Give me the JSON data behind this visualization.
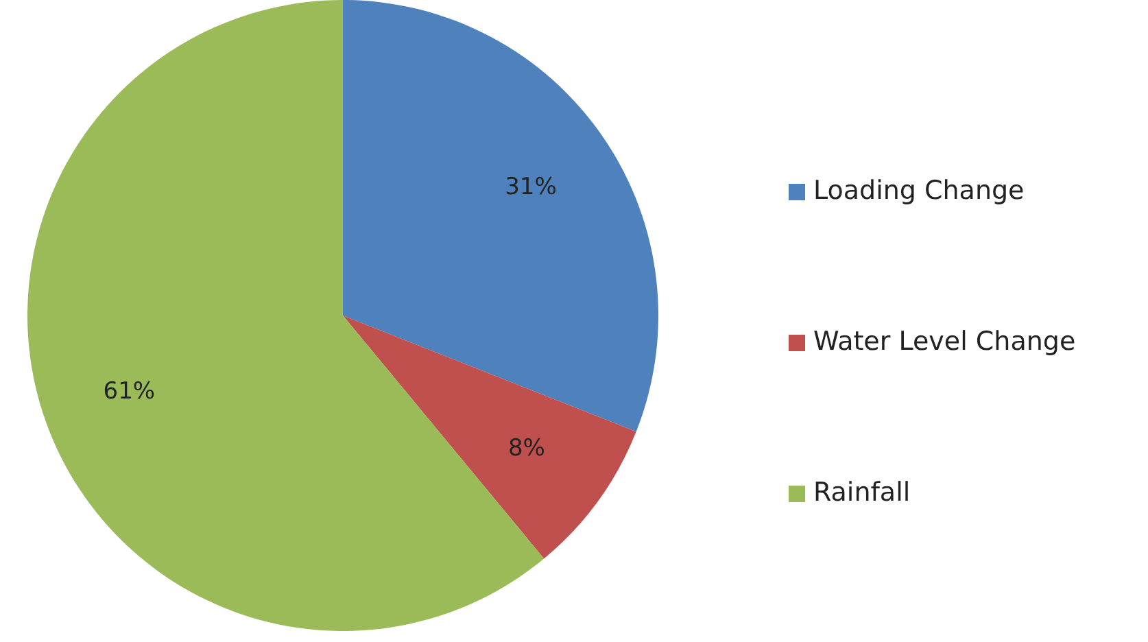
{
  "chart_data": {
    "type": "pie",
    "categories": [
      "Loading Change",
      "Water Level Change",
      "Rainfall"
    ],
    "values": [
      31,
      8,
      61
    ],
    "colors": [
      "#4f81bd",
      "#c0504d",
      "#9bbb59"
    ],
    "value_labels": [
      "31%",
      "8%",
      "61%"
    ],
    "legend": "right"
  }
}
